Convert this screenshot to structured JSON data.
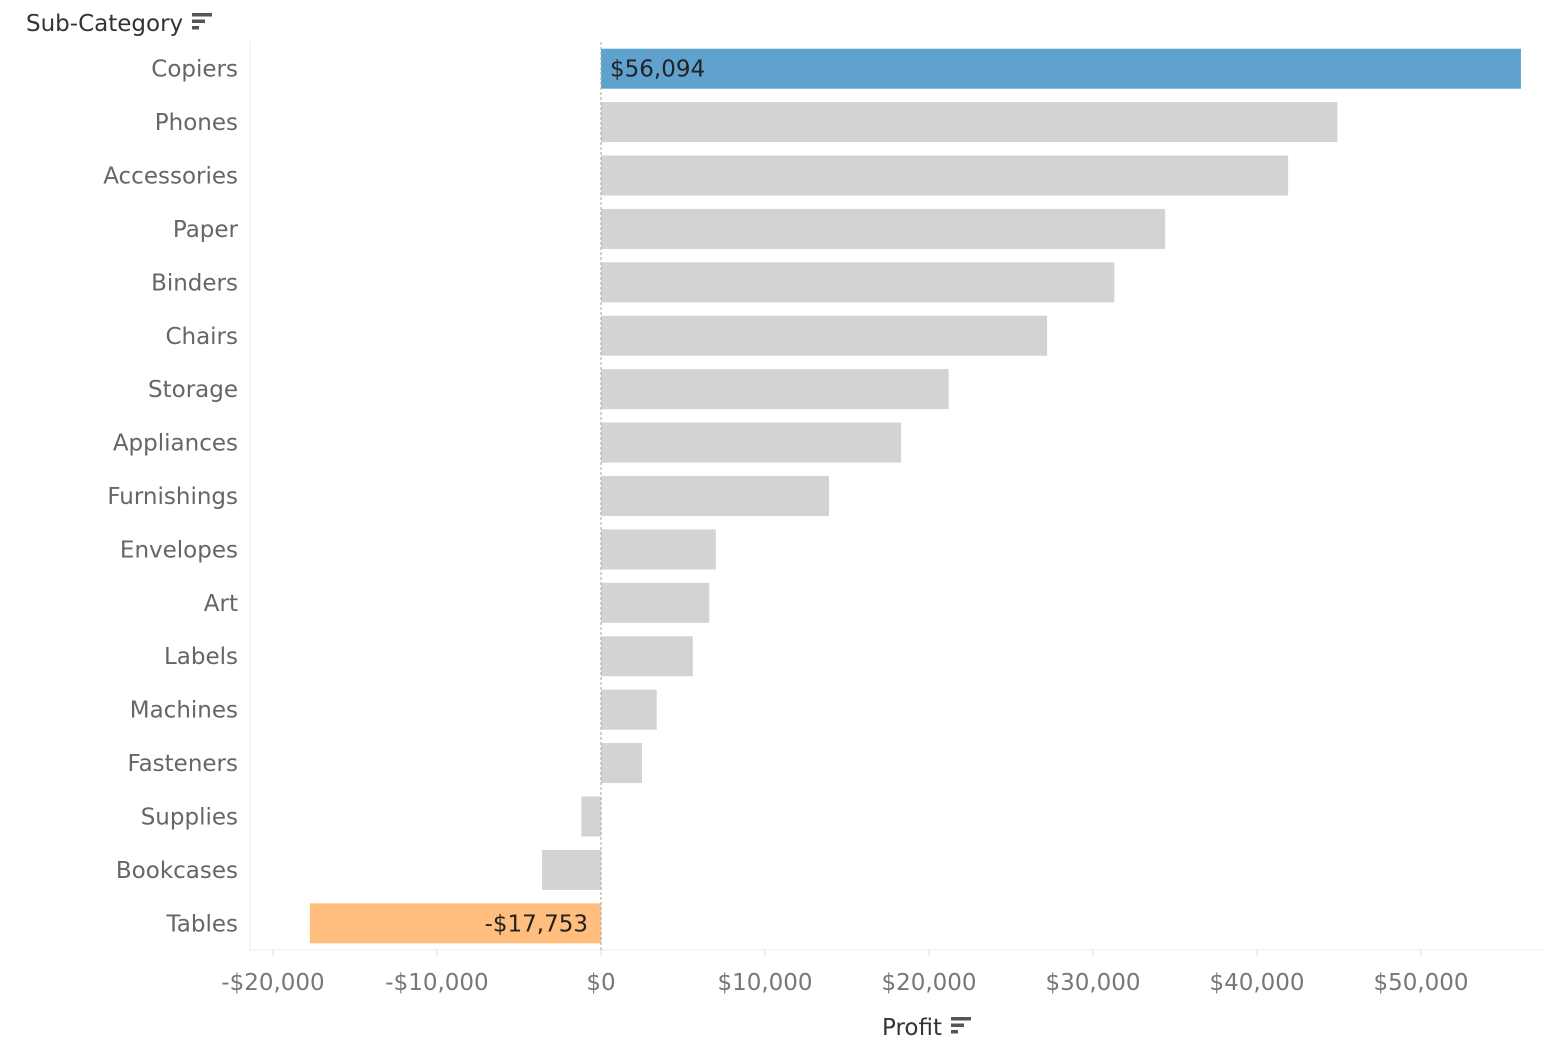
{
  "header": {
    "row_field": "Sub-Category",
    "column_field": "Profit"
  },
  "icons": {
    "sort": "sort-descending-icon"
  },
  "colors": {
    "highlight_max": "#5fa2cd",
    "highlight_min": "#ffbe7d",
    "default_bar": "#d3d3d3",
    "zero_line": "#b0b0b0"
  },
  "chart_data": {
    "type": "bar",
    "orientation": "horizontal",
    "categories": [
      "Copiers",
      "Phones",
      "Accessories",
      "Paper",
      "Binders",
      "Chairs",
      "Storage",
      "Appliances",
      "Furnishings",
      "Envelopes",
      "Art",
      "Labels",
      "Machines",
      "Fasteners",
      "Supplies",
      "Bookcases",
      "Tables"
    ],
    "values": [
      56094,
      44900,
      41900,
      34400,
      31300,
      27200,
      21200,
      18300,
      13900,
      7000,
      6600,
      5600,
      3400,
      2500,
      -1200,
      -3600,
      -17753
    ],
    "data_labels": {
      "Copiers": "$56,094",
      "Tables": "-$17,753"
    },
    "xlabel": "Profit",
    "ylabel": "Sub-Category",
    "xlim": [
      -21400,
      57800
    ],
    "xticks": [
      -20000,
      -10000,
      0,
      10000,
      20000,
      30000,
      40000,
      50000
    ],
    "xtick_labels": [
      "-$20,000",
      "-$10,000",
      "$0",
      "$10,000",
      "$20,000",
      "$30,000",
      "$40,000",
      "$50,000"
    ],
    "grid": false
  }
}
